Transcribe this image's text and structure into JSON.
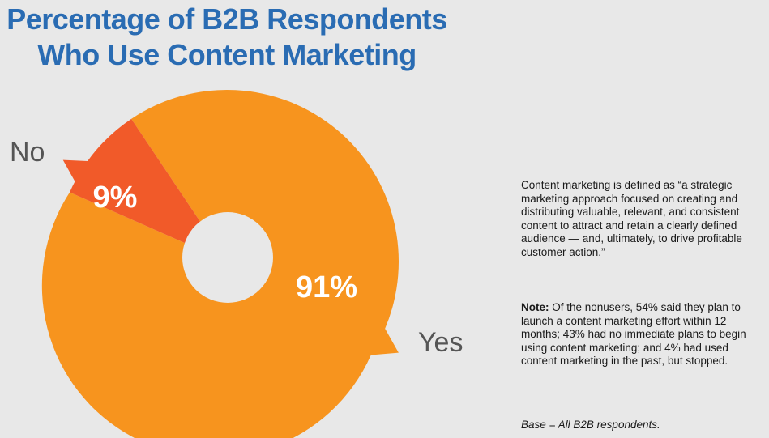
{
  "chart_data": {
    "type": "pie",
    "title": [
      "Percentage of B2B Respondents",
      "Who Use Content Marketing"
    ],
    "slices": [
      {
        "label": "Yes",
        "value": 91,
        "value_label": "91%",
        "color": "#f7941e"
      },
      {
        "label": "No",
        "value": 9,
        "value_label": "9%",
        "color": "#f15a29"
      }
    ],
    "style": "donut"
  },
  "colors": {
    "title": "#2a6cb3",
    "background": "#e8e8e8",
    "label_text": "#555555"
  },
  "text": {
    "definition": "Content marketing is defined as “a strategic marketing approach focused on creating and distributing valuable, relevant, and consistent content to attract and retain a clearly defined audience — and, ultimately, to drive profitable customer action.”",
    "note_label": "Note:",
    "note_body": " Of the nonusers, 54% said they plan to launch a content marketing effort within 12 months; 43% had no immediate plans to begin using content marketing; and 4% had used content marketing in the past, but stopped.",
    "base": "Base = All B2B respondents."
  }
}
